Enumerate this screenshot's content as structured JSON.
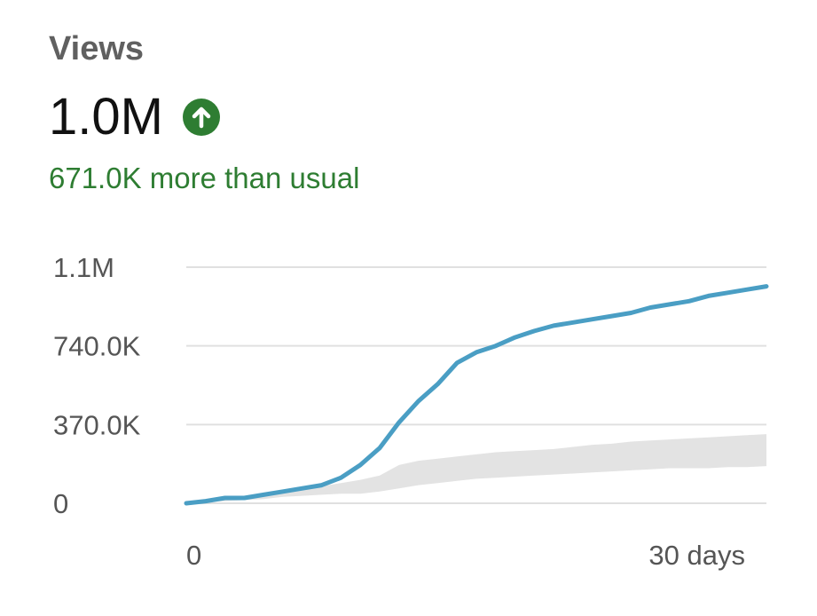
{
  "metric": {
    "title": "Views",
    "value": "1.0M",
    "delta_text": "671.0K more than usual",
    "trend_direction": "up",
    "trend_icon": "arrow-up-circle-icon"
  },
  "colors": {
    "positive": "#2e7d32",
    "line": "#4a9ec4",
    "band": "#e3e3e3",
    "grid": "#e0e0e0"
  },
  "chart_data": {
    "type": "line",
    "title": "",
    "xlabel": "",
    "ylabel": "",
    "x_tick_labels": [
      "0",
      "30 days"
    ],
    "x_ticks": [
      0,
      30
    ],
    "xlim": [
      0,
      30
    ],
    "y_tick_labels": [
      "0",
      "370.0K",
      "740.0K",
      "1.1M"
    ],
    "y_ticks": [
      0,
      370000,
      740000,
      1110000
    ],
    "ylim": [
      0,
      1110000
    ],
    "grid": true,
    "legend": "none",
    "series": [
      {
        "type": "line",
        "x": [
          0,
          1,
          2,
          3,
          4,
          5,
          6,
          7,
          8,
          9,
          10,
          11,
          12,
          13,
          14,
          15,
          16,
          17,
          18,
          19,
          20,
          21,
          22,
          23,
          24,
          25,
          26,
          27,
          28,
          29,
          30
        ],
        "values": [
          0,
          10000,
          25000,
          25000,
          40000,
          55000,
          70000,
          85000,
          120000,
          180000,
          260000,
          380000,
          480000,
          560000,
          660000,
          710000,
          740000,
          780000,
          810000,
          835000,
          850000,
          865000,
          880000,
          895000,
          920000,
          935000,
          950000,
          975000,
          990000,
          1005000,
          1020000
        ]
      }
    ],
    "typical_range": {
      "x": [
        0,
        1,
        2,
        3,
        4,
        5,
        6,
        7,
        8,
        9,
        10,
        11,
        12,
        13,
        14,
        15,
        16,
        17,
        18,
        19,
        20,
        21,
        22,
        23,
        24,
        25,
        26,
        27,
        28,
        29,
        30
      ],
      "low": [
        0,
        5000,
        10000,
        15000,
        20000,
        30000,
        35000,
        40000,
        45000,
        45000,
        55000,
        70000,
        85000,
        95000,
        105000,
        115000,
        120000,
        125000,
        130000,
        135000,
        140000,
        145000,
        150000,
        155000,
        160000,
        165000,
        165000,
        165000,
        170000,
        170000,
        175000
      ],
      "high": [
        0,
        15000,
        20000,
        25000,
        35000,
        50000,
        65000,
        80000,
        95000,
        110000,
        130000,
        180000,
        200000,
        210000,
        220000,
        230000,
        240000,
        245000,
        250000,
        255000,
        265000,
        275000,
        280000,
        290000,
        295000,
        300000,
        305000,
        310000,
        315000,
        320000,
        325000
      ]
    }
  }
}
